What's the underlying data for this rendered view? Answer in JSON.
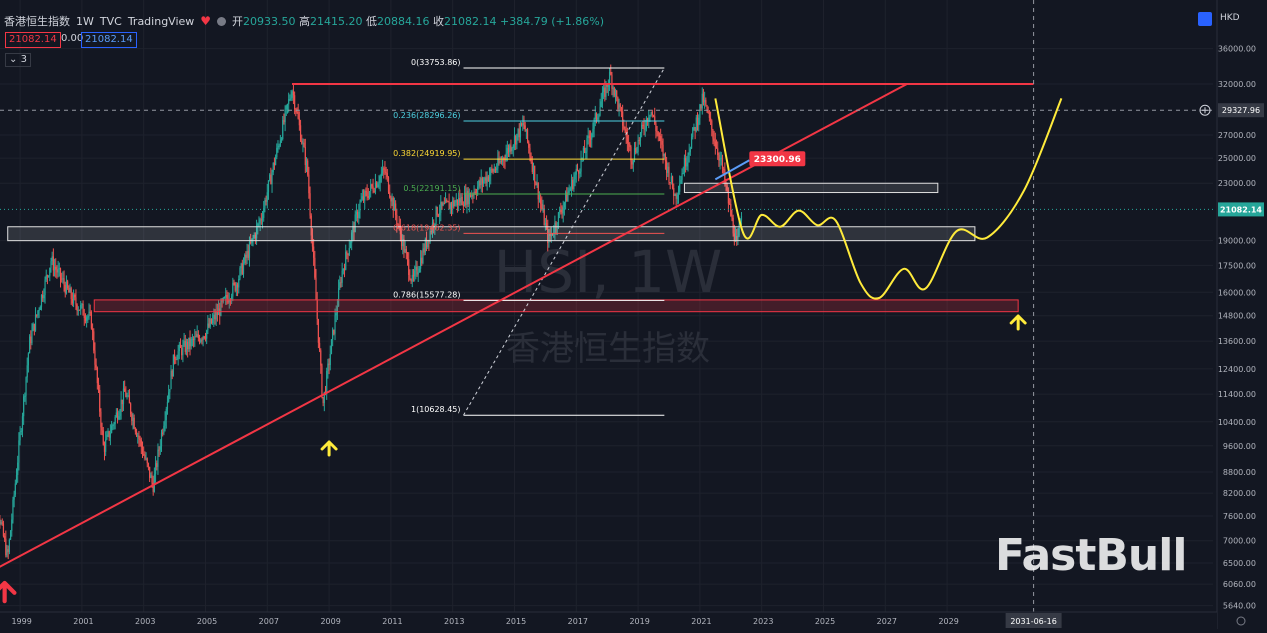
{
  "header": {
    "symbol": "香港恒生指数",
    "interval": "1W",
    "source": "TVC",
    "platform": "TradingView",
    "open_label": "开",
    "open": "20933.50",
    "high_label": "高",
    "high": "21415.20",
    "low_label": "低",
    "low": "20884.16",
    "close_label": "收",
    "close": "21082.14",
    "change": "+384.79 (+1.86%)"
  },
  "price_boxes": {
    "bid": "21082.14",
    "spread": "0.00",
    "ask": "21082.14"
  },
  "indicator_count": "3",
  "currency": "HKD",
  "watermark": {
    "symbol": "HSI, 1W",
    "name": "香港恒生指数"
  },
  "brand": "FastBull",
  "colors": {
    "up": "#26a69a",
    "down": "#ef5350",
    "trend": "#f23645",
    "forecast": "#ffeb3b",
    "arrow_red": "#f23645",
    "arrow_yellow": "#ffeb3b"
  },
  "chart_data": {
    "type": "candlestick",
    "title": "",
    "x_axis_ticks": [
      "1999",
      "2001",
      "2003",
      "2005",
      "2007",
      "2009",
      "2011",
      "2013",
      "2015",
      "2017",
      "2019",
      "2021",
      "2023",
      "2025",
      "2027",
      "2029"
    ],
    "y_axis_ticks": [
      "36000.00",
      "32000.00",
      "27000.00",
      "25000.00",
      "23000.00",
      "19000.00",
      "17500.00",
      "16000.00",
      "14800.00",
      "13600.00",
      "12400.00",
      "11400.00",
      "10400.00",
      "9600.00",
      "8800.00",
      "8200.00",
      "7600.00",
      "7000.00",
      "6500.00",
      "6060.00",
      "5640.00"
    ],
    "y_scale": "log",
    "ylim": [
      5400,
      40000
    ],
    "price_labels": {
      "last": "21082.14",
      "crosshair": "29327.96",
      "callout": "23300.96"
    },
    "crosshair_date": "2031-06-16",
    "fibonacci": [
      {
        "level": "0",
        "price": 33753.86,
        "label": "0(33753.86)",
        "color": "#ffffff"
      },
      {
        "level": "0.236",
        "price": 28296.26,
        "label": "0.236(28296.26)",
        "color": "#4dd0e1"
      },
      {
        "level": "0.382",
        "price": 24919.95,
        "label": "0.382(24919.95)",
        "color": "#fdd835"
      },
      {
        "level": "0.5",
        "price": 22191.15,
        "label": "0.5(22191.15)",
        "color": "#4caf50"
      },
      {
        "level": "0.618",
        "price": 19462.35,
        "label": "0.618(19462.35)",
        "color": "#ef5350"
      },
      {
        "level": "0.786",
        "price": 15577.28,
        "label": "0.786(15577.28)",
        "color": "#ffffff"
      },
      {
        "level": "1",
        "price": 10628.45,
        "label": "1(10628.45)",
        "color": "#ffffff"
      }
    ],
    "horizontal_resistance": 32000,
    "trendline": [
      {
        "x": 1998.0,
        "y": 6300
      },
      {
        "x": 2027.7,
        "y": 32000
      }
    ],
    "zones": [
      {
        "x0": 1998.6,
        "x1": 2029.9,
        "y0": 19000,
        "y1": 19900,
        "color": "white"
      },
      {
        "x0": 2020.5,
        "x1": 2028.7,
        "y0": 22300,
        "y1": 23000,
        "color": "white"
      },
      {
        "x0": 2001.4,
        "x1": 2031.3,
        "y0": 15000,
        "y1": 15600,
        "color": "red"
      }
    ],
    "forecast_path": [
      {
        "x": 2021.5,
        "y": 30500
      },
      {
        "x": 2022.4,
        "y": 19500
      },
      {
        "x": 2023.0,
        "y": 20700
      },
      {
        "x": 2023.6,
        "y": 19900
      },
      {
        "x": 2024.2,
        "y": 21000
      },
      {
        "x": 2024.8,
        "y": 20000
      },
      {
        "x": 2025.4,
        "y": 20300
      },
      {
        "x": 2026.2,
        "y": 16500
      },
      {
        "x": 2026.8,
        "y": 15700
      },
      {
        "x": 2027.6,
        "y": 17300
      },
      {
        "x": 2028.3,
        "y": 16200
      },
      {
        "x": 2029.3,
        "y": 19600
      },
      {
        "x": 2030.3,
        "y": 19200
      },
      {
        "x": 2031.5,
        "y": 22500
      },
      {
        "x": 2032.7,
        "y": 30500
      }
    ],
    "price_path": [
      {
        "x": 1998.0,
        "y": 9000
      },
      {
        "x": 1998.6,
        "y": 6600
      },
      {
        "x": 1999.3,
        "y": 13500
      },
      {
        "x": 2000.0,
        "y": 17800
      },
      {
        "x": 2000.7,
        "y": 15600
      },
      {
        "x": 2001.3,
        "y": 14600
      },
      {
        "x": 2001.7,
        "y": 9500
      },
      {
        "x": 2002.4,
        "y": 11500
      },
      {
        "x": 2003.3,
        "y": 8400
      },
      {
        "x": 2004.0,
        "y": 13000
      },
      {
        "x": 2005.0,
        "y": 14000
      },
      {
        "x": 2006.0,
        "y": 16500
      },
      {
        "x": 2006.8,
        "y": 20500
      },
      {
        "x": 2007.8,
        "y": 31600
      },
      {
        "x": 2008.3,
        "y": 24000
      },
      {
        "x": 2008.8,
        "y": 11000
      },
      {
        "x": 2009.4,
        "y": 17000
      },
      {
        "x": 2010.0,
        "y": 21500
      },
      {
        "x": 2010.8,
        "y": 24000
      },
      {
        "x": 2011.7,
        "y": 16500
      },
      {
        "x": 2012.5,
        "y": 21000
      },
      {
        "x": 2013.5,
        "y": 22000
      },
      {
        "x": 2014.5,
        "y": 24500
      },
      {
        "x": 2015.3,
        "y": 28000
      },
      {
        "x": 2016.1,
        "y": 19000
      },
      {
        "x": 2017.2,
        "y": 25000
      },
      {
        "x": 2018.1,
        "y": 33000
      },
      {
        "x": 2018.8,
        "y": 25000
      },
      {
        "x": 2019.4,
        "y": 29500
      },
      {
        "x": 2020.2,
        "y": 22000
      },
      {
        "x": 2021.1,
        "y": 30500
      },
      {
        "x": 2021.7,
        "y": 24500
      },
      {
        "x": 2022.2,
        "y": 18500
      },
      {
        "x": 2022.35,
        "y": 21082
      }
    ],
    "annotations": [
      {
        "type": "arrow_up",
        "x": 1998.5,
        "color": "red"
      },
      {
        "type": "arrow_up",
        "x": 2009.0,
        "color": "yellow"
      },
      {
        "type": "arrow_up",
        "x": 2031.3,
        "color": "yellow"
      }
    ]
  }
}
